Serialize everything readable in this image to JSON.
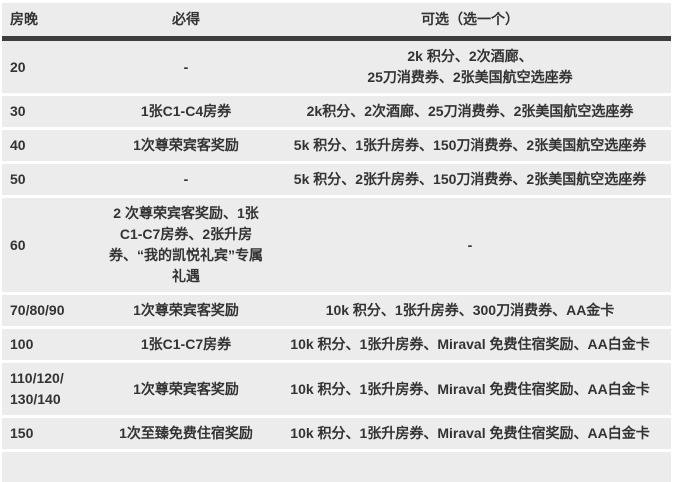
{
  "colors": {
    "page_bg": "#ffffff",
    "row_bg": "#ececec",
    "header_divider": "#3d3d3d",
    "row_separator": "#ffffff",
    "text": "#333333"
  },
  "chart_data": {
    "type": "table",
    "columns": [
      "房晚",
      "必得",
      "可选（选一个）"
    ],
    "rows": [
      {
        "nights": "20",
        "required": "-",
        "optional": "2k 积分、2次酒廊、\n25刀消费券、2张美国航空选座券"
      },
      {
        "nights": "30",
        "required": "1张C1-C4房券",
        "optional": "2k积分、2次酒廊、25刀消费券、2张美国航空选座券"
      },
      {
        "nights": "40",
        "required": "1次尊荣宾客奖励",
        "optional": "5k 积分、1张升房券、150刀消费券、2张美国航空选座券"
      },
      {
        "nights": "50",
        "required": "-",
        "optional": "5k 积分、2张升房券、150刀消费券、2张美国航空选座券"
      },
      {
        "nights": "60",
        "required": "2 次尊荣宾客奖励、1张\nC1-C7房券、2张升房\n券、“我的凯悦礼宾”专属\n礼遇",
        "optional": "-"
      },
      {
        "nights": "70/80/90",
        "required": "1次尊荣宾客奖励",
        "optional": "10k 积分、1张升房券、300刀消费券、AA金卡"
      },
      {
        "nights": "100",
        "required": "1张C1-C7房券",
        "optional": "10k 积分、1张升房券、Miraval 免费住宿奖励、AA白金卡"
      },
      {
        "nights": "110/120/\n130/140",
        "required": "1次尊荣宾客奖励",
        "optional": "10k 积分、1张升房券、Miraval 免费住宿奖励、AA白金卡"
      },
      {
        "nights": "150",
        "required": "1次至臻免费住宿奖励",
        "optional": "10k 积分、1张升房券、Miraval 免费住宿奖励、AA白金卡"
      }
    ]
  }
}
